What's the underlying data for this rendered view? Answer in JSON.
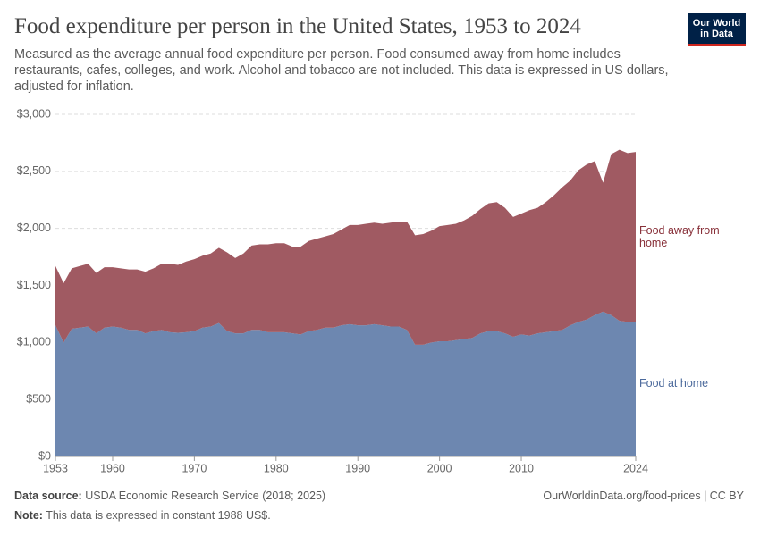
{
  "header": {
    "title": "Food expenditure per person in the United States, 1953 to 2024",
    "subtitle": "Measured as the average annual food expenditure per person. Food consumed away from home includes restaurants, cafes, colleges, and work. Alcohol and tobacco are not included. This data is expressed in US dollars, adjusted for inflation.",
    "logo": [
      "Our World",
      "in Data"
    ]
  },
  "chart_data": {
    "type": "stacked-area",
    "x": [
      1953,
      1954,
      1955,
      1956,
      1957,
      1958,
      1959,
      1960,
      1961,
      1962,
      1963,
      1964,
      1965,
      1966,
      1967,
      1968,
      1969,
      1970,
      1971,
      1972,
      1973,
      1974,
      1975,
      1976,
      1977,
      1978,
      1979,
      1980,
      1981,
      1982,
      1983,
      1984,
      1985,
      1986,
      1987,
      1988,
      1989,
      1990,
      1991,
      1992,
      1993,
      1994,
      1995,
      1996,
      1997,
      1998,
      1999,
      2000,
      2001,
      2002,
      2003,
      2004,
      2005,
      2006,
      2007,
      2008,
      2009,
      2010,
      2011,
      2012,
      2013,
      2014,
      2015,
      2016,
      2017,
      2018,
      2019,
      2020,
      2021,
      2022,
      2023,
      2024
    ],
    "series": [
      {
        "name": "Food at home",
        "color": "#6d87b0",
        "label_color": "#4c6a9c",
        "values": [
          1150,
          1000,
          1120,
          1130,
          1140,
          1080,
          1130,
          1140,
          1130,
          1110,
          1110,
          1080,
          1100,
          1110,
          1090,
          1085,
          1090,
          1100,
          1130,
          1140,
          1170,
          1100,
          1080,
          1080,
          1110,
          1110,
          1090,
          1090,
          1090,
          1080,
          1070,
          1100,
          1110,
          1130,
          1130,
          1150,
          1160,
          1150,
          1150,
          1160,
          1150,
          1140,
          1140,
          1110,
          980,
          980,
          1000,
          1010,
          1010,
          1020,
          1030,
          1040,
          1080,
          1100,
          1100,
          1080,
          1050,
          1070,
          1060,
          1080,
          1090,
          1100,
          1110,
          1150,
          1180,
          1200,
          1240,
          1270,
          1240,
          1190,
          1180,
          1180
        ]
      },
      {
        "name": "Food away from home",
        "color": "#a05a62",
        "label_color": "#883039",
        "values": [
          520,
          520,
          530,
          540,
          550,
          530,
          530,
          520,
          520,
          530,
          530,
          540,
          550,
          580,
          600,
          595,
          620,
          630,
          630,
          640,
          660,
          690,
          660,
          700,
          740,
          750,
          770,
          780,
          780,
          760,
          770,
          790,
          800,
          800,
          820,
          840,
          870,
          880,
          890,
          890,
          890,
          910,
          920,
          950,
          960,
          970,
          980,
          1010,
          1020,
          1020,
          1040,
          1070,
          1090,
          1120,
          1130,
          1100,
          1050,
          1060,
          1100,
          1100,
          1140,
          1190,
          1250,
          1270,
          1330,
          1360,
          1350,
          1130,
          1410,
          1500,
          1480,
          1490
        ]
      }
    ],
    "xlim": [
      1953,
      2024
    ],
    "xticks": [
      1953,
      1960,
      1970,
      1980,
      1990,
      2000,
      2010,
      2024
    ],
    "ylim": [
      0,
      3000
    ],
    "yticks": [
      {
        "value": 0,
        "label": "$0"
      },
      {
        "value": 500,
        "label": "$500"
      },
      {
        "value": 1000,
        "label": "$1,000"
      },
      {
        "value": 1500,
        "label": "$1,500"
      },
      {
        "value": 2000,
        "label": "$2,000"
      },
      {
        "value": 2500,
        "label": "$2,500"
      },
      {
        "value": 3000,
        "label": "$3,000"
      }
    ],
    "grid": true
  },
  "footer": {
    "source_label": "Data source:",
    "source": "USDA Economic Research Service (2018; 2025)",
    "url": "OurWorldinData.org/food-prices | CC BY",
    "note_label": "Note:",
    "note": "This data is expressed in constant 1988 US$."
  }
}
